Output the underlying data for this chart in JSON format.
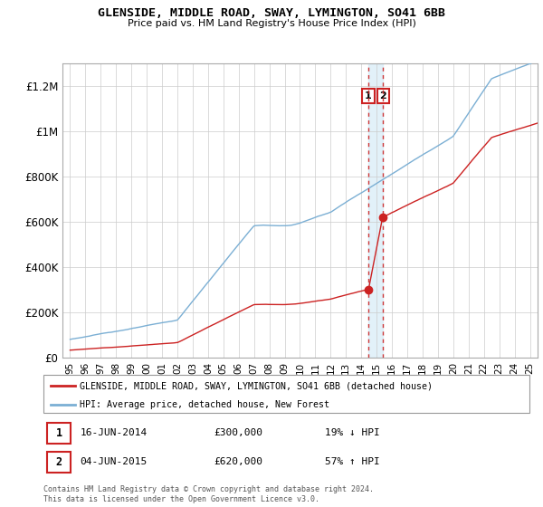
{
  "title1": "GLENSIDE, MIDDLE ROAD, SWAY, LYMINGTON, SO41 6BB",
  "title2": "Price paid vs. HM Land Registry's House Price Index (HPI)",
  "legend_label1": "GLENSIDE, MIDDLE ROAD, SWAY, LYMINGTON, SO41 6BB (detached house)",
  "legend_label2": "HPI: Average price, detached house, New Forest",
  "hpi_color": "#7bafd4",
  "property_color": "#cc2222",
  "dashed_line_color": "#cc2222",
  "annotation1_label": "1",
  "annotation1_date": "16-JUN-2014",
  "annotation1_price": "£300,000",
  "annotation1_pct": "19% ↓ HPI",
  "annotation2_label": "2",
  "annotation2_date": "04-JUN-2015",
  "annotation2_price": "£620,000",
  "annotation2_pct": "57% ↑ HPI",
  "copyright_text": "Contains HM Land Registry data © Crown copyright and database right 2024.\nThis data is licensed under the Open Government Licence v3.0.",
  "ylim": [
    0,
    1300000
  ],
  "yticks": [
    0,
    200000,
    400000,
    600000,
    800000,
    1000000,
    1200000
  ],
  "ytick_labels": [
    "£0",
    "£200K",
    "£400K",
    "£600K",
    "£800K",
    "£1M",
    "£1.2M"
  ],
  "x_start_year": 1995,
  "x_end_year": 2025,
  "sale1_year": 2014.45,
  "sale2_year": 2015.42,
  "sale1_price": 300000,
  "sale2_price": 620000
}
